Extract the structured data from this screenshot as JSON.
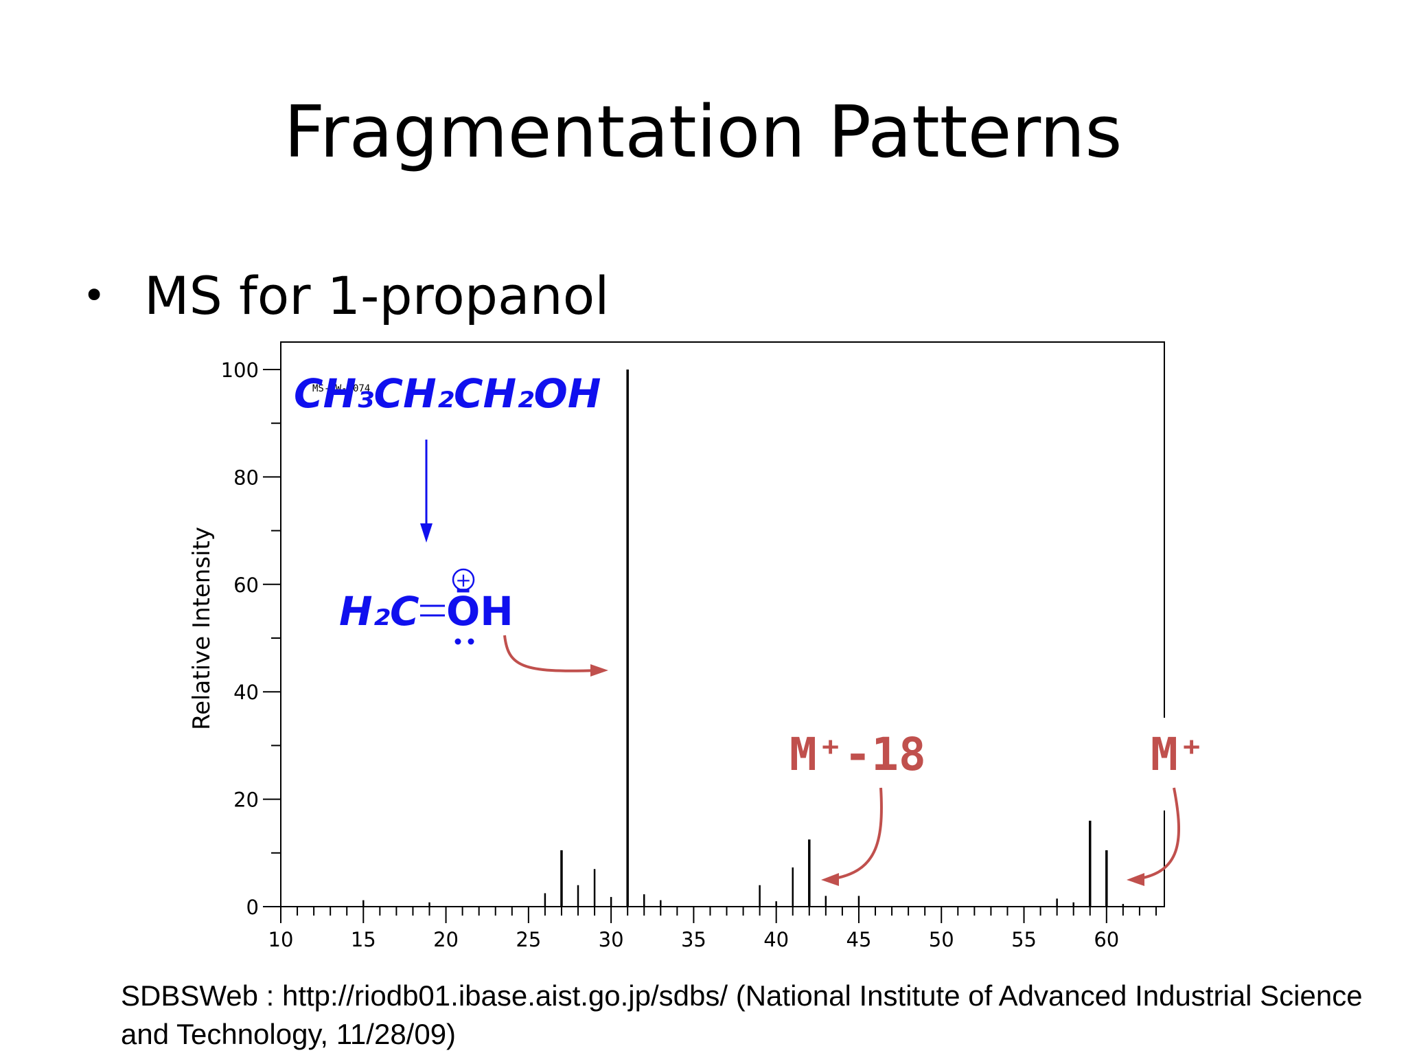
{
  "slide": {
    "title": "Fragmentation Patterns",
    "bullet": "MS for 1-propanol",
    "citation": "SDBSWeb : http://riodb01.ibase.aist.go.jp/sdbs/ (National Institute of Advanced Industrial Science and Technology, 11/28/09)"
  },
  "chart_data": {
    "type": "bar",
    "xlabel": "",
    "ylabel": "Relative Intensity",
    "xlim": [
      10,
      63.5
    ],
    "ylim": [
      0,
      100
    ],
    "x_ticks": [
      10,
      15,
      20,
      25,
      30,
      35,
      40,
      45,
      50,
      55,
      60
    ],
    "y_ticks": [
      0,
      20,
      40,
      60,
      80,
      100
    ],
    "grid": false,
    "spectrum_code": "MS-NW-1074",
    "peaks": [
      {
        "mz": 15,
        "intensity": 1.2
      },
      {
        "mz": 19,
        "intensity": 0.8
      },
      {
        "mz": 26,
        "intensity": 2.5
      },
      {
        "mz": 27,
        "intensity": 10.5
      },
      {
        "mz": 28,
        "intensity": 4
      },
      {
        "mz": 29,
        "intensity": 7
      },
      {
        "mz": 30,
        "intensity": 1.8
      },
      {
        "mz": 31,
        "intensity": 100
      },
      {
        "mz": 32,
        "intensity": 2.3
      },
      {
        "mz": 33,
        "intensity": 1.2
      },
      {
        "mz": 39,
        "intensity": 4
      },
      {
        "mz": 40,
        "intensity": 1
      },
      {
        "mz": 41,
        "intensity": 7.3
      },
      {
        "mz": 42,
        "intensity": 12.5
      },
      {
        "mz": 43,
        "intensity": 2
      },
      {
        "mz": 45,
        "intensity": 2
      },
      {
        "mz": 57,
        "intensity": 1.5
      },
      {
        "mz": 58,
        "intensity": 0.8
      },
      {
        "mz": 59,
        "intensity": 16
      },
      {
        "mz": 60,
        "intensity": 10.5
      },
      {
        "mz": 61,
        "intensity": 0.5
      }
    ],
    "annotations": {
      "reactant_formula": "CH₃CH₂CH₂OH",
      "fragment_formula_left": "H₂C",
      "fragment_formula_right": "ŌH",
      "fragment_charge": "+",
      "m_minus_18_label": "M⁺-18",
      "molecular_ion_label": "M⁺"
    },
    "colors": {
      "peaks": "#000000",
      "mechanism": "#1010ee",
      "callouts": "#c0504d"
    }
  }
}
